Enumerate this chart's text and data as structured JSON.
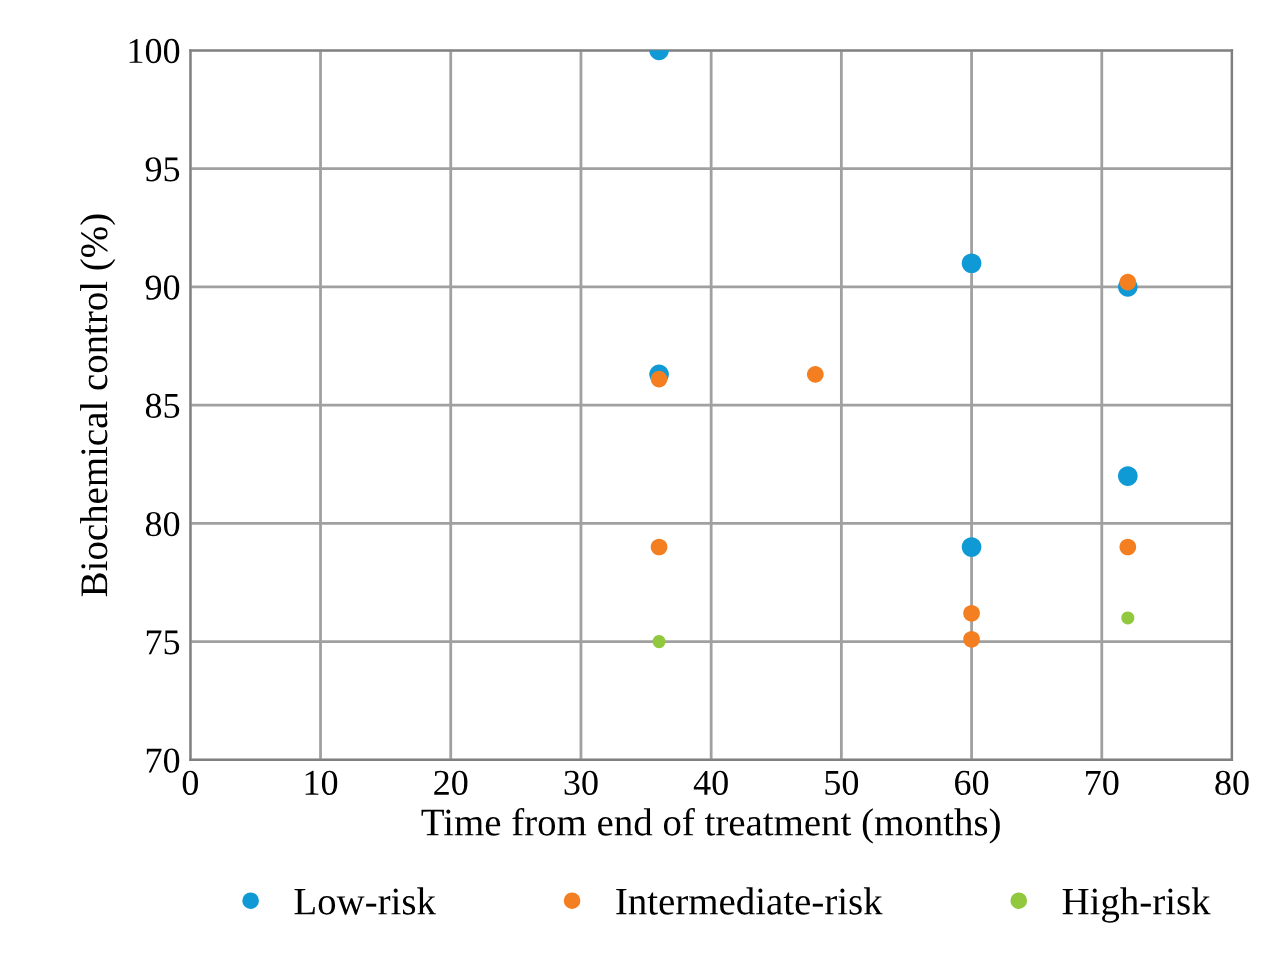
{
  "chart_data": {
    "type": "scatter",
    "xlabel": "Time from end of treatment (months)",
    "ylabel": "Biochemical control (%)",
    "xlim": [
      0,
      80
    ],
    "xticks": [
      0,
      10,
      20,
      30,
      40,
      50,
      60,
      70,
      80
    ],
    "ylim": [
      70,
      100
    ],
    "yticks": [
      70,
      75,
      80,
      85,
      90,
      95,
      100
    ],
    "grid": true,
    "legend": "bottom",
    "marker": "circle",
    "series": [
      {
        "name": "Low-risk",
        "color": "#0f9ad6",
        "x": [
          36,
          36,
          60,
          60,
          72,
          72
        ],
        "values": [
          100,
          86.3,
          91,
          79,
          90,
          82
        ]
      },
      {
        "name": "Intermediate-risk",
        "color": "#f47f20",
        "x": [
          36,
          36,
          48,
          60,
          60,
          72,
          72
        ],
        "values": [
          86.1,
          79,
          86.3,
          76.2,
          75.1,
          90.2,
          79
        ]
      },
      {
        "name": "High-risk",
        "color": "#92c83e",
        "x": [
          36,
          72
        ],
        "values": [
          75,
          76
        ]
      }
    ]
  }
}
